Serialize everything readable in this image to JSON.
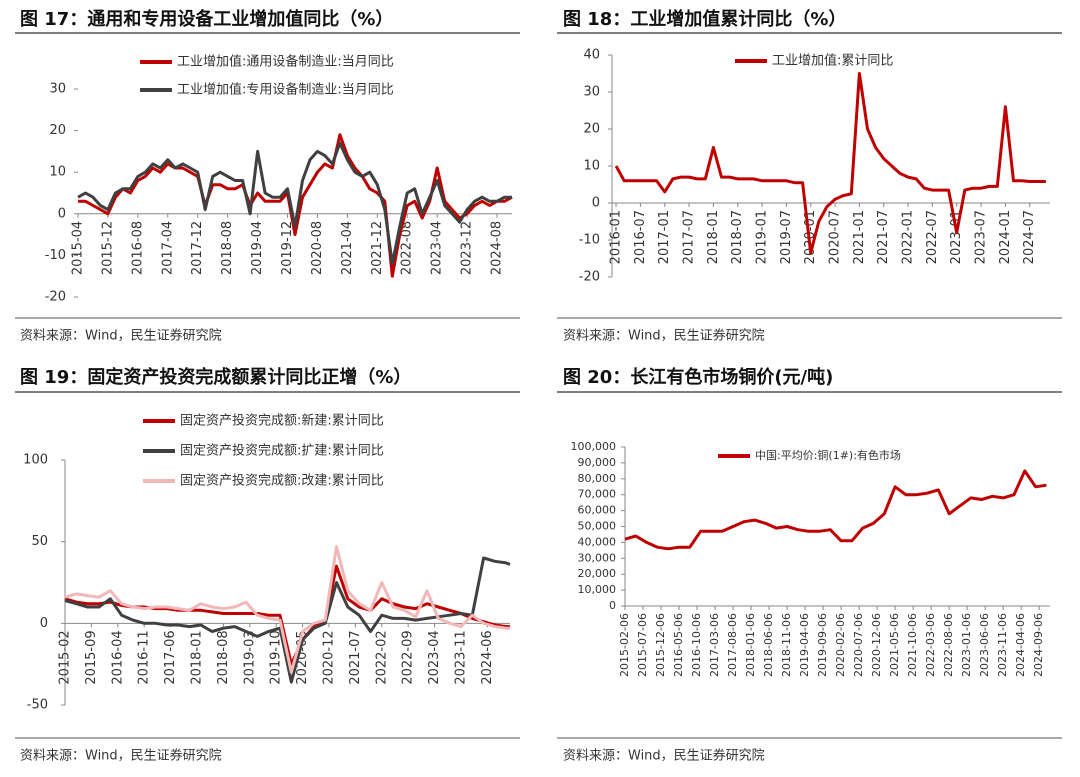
{
  "chart_data": [
    {
      "type": "line",
      "title": "图 17：通用和专用设备工业增加值同比（%）",
      "source": "资料来源：Wind，民生证券研究院",
      "x": [
        "2015-04",
        "2015-06",
        "2015-08",
        "2015-10",
        "2015-12",
        "2016-02",
        "2016-04",
        "2016-06",
        "2016-08",
        "2016-10",
        "2016-12",
        "2017-02",
        "2017-04",
        "2017-06",
        "2017-08",
        "2017-10",
        "2017-12",
        "2018-02",
        "2018-04",
        "2018-06",
        "2018-08",
        "2018-10",
        "2018-12",
        "2019-02",
        "2019-04",
        "2019-06",
        "2019-08",
        "2019-10",
        "2019-12",
        "2020-02",
        "2020-04",
        "2020-06",
        "2020-08",
        "2020-10",
        "2020-12",
        "2021-02",
        "2021-04",
        "2021-06",
        "2021-08",
        "2021-10",
        "2021-12",
        "2022-02",
        "2022-04",
        "2022-06",
        "2022-08",
        "2022-10",
        "2022-12",
        "2023-02",
        "2023-04",
        "2023-06",
        "2023-08",
        "2023-10",
        "2023-12",
        "2024-02",
        "2024-04",
        "2024-06",
        "2024-08",
        "2024-10",
        "2024-12"
      ],
      "xlim": [
        "2015-04",
        "2024-12"
      ],
      "xticks": [
        "2015-04",
        "2015-12",
        "2016-08",
        "2017-04",
        "2017-12",
        "2018-08",
        "2019-04",
        "2019-12",
        "2020-08",
        "2021-04",
        "2021-12",
        "2022-08",
        "2023-04",
        "2023-12",
        "2024-08"
      ],
      "ylim": [
        -20,
        30
      ],
      "yticks": [
        -20,
        -10,
        0,
        10,
        20,
        30
      ],
      "series": [
        {
          "name": "工业增加值:通用设备制造业:当月同比",
          "color": "#c00000",
          "values": [
            3,
            3,
            2,
            1,
            0,
            4,
            6,
            5,
            8,
            9,
            11,
            10,
            12,
            11,
            11,
            10,
            9,
            2,
            7,
            7,
            6,
            6,
            7,
            2,
            5,
            3,
            3,
            3,
            5,
            -5,
            4,
            7,
            10,
            12,
            11,
            19,
            14,
            11,
            9,
            6,
            5,
            3,
            -15,
            -5,
            2,
            3,
            -1,
            3,
            11,
            3,
            1,
            -1,
            0,
            2,
            3,
            2,
            3,
            3,
            4
          ]
        },
        {
          "name": "工业增加值:专用设备制造业:当月同比",
          "color": "#404040",
          "values": [
            4,
            5,
            4,
            2,
            1,
            5,
            6,
            6,
            9,
            10,
            12,
            11,
            13,
            11,
            12,
            11,
            10,
            1,
            9,
            10,
            9,
            8,
            8,
            0,
            15,
            5,
            4,
            4,
            6,
            -3,
            8,
            13,
            15,
            14,
            12,
            17,
            13,
            10,
            9,
            10,
            7,
            1,
            -12,
            -3,
            5,
            6,
            0,
            4,
            8,
            2,
            0,
            -2,
            1,
            3,
            4,
            3,
            3,
            4,
            4
          ]
        }
      ]
    },
    {
      "type": "line",
      "title": "图 18：工业增加值累计同比（%）",
      "source": "资料来源：Wind，民生证券研究院",
      "x": [
        "2016-01",
        "2016-03",
        "2016-05",
        "2016-07",
        "2016-09",
        "2016-11",
        "2017-01",
        "2017-03",
        "2017-05",
        "2017-07",
        "2017-09",
        "2017-11",
        "2018-01",
        "2018-03",
        "2018-05",
        "2018-07",
        "2018-09",
        "2018-11",
        "2019-01",
        "2019-03",
        "2019-05",
        "2019-07",
        "2019-09",
        "2019-11",
        "2020-01",
        "2020-03",
        "2020-05",
        "2020-07",
        "2020-09",
        "2020-11",
        "2021-01",
        "2021-03",
        "2021-05",
        "2021-07",
        "2021-09",
        "2021-11",
        "2022-01",
        "2022-03",
        "2022-05",
        "2022-07",
        "2022-09",
        "2022-11",
        "2023-01",
        "2023-03",
        "2023-05",
        "2023-07",
        "2023-09",
        "2023-11",
        "2024-01",
        "2024-03",
        "2024-05",
        "2024-07",
        "2024-09",
        "2024-11"
      ],
      "xlim": [
        "2015-12",
        "2024-12"
      ],
      "xticks": [
        "2016-01",
        "2016-07",
        "2017-01",
        "2017-07",
        "2018-01",
        "2018-07",
        "2019-01",
        "2019-07",
        "2020-01",
        "2020-07",
        "2021-01",
        "2021-07",
        "2022-01",
        "2022-07",
        "2023-01",
        "2023-07",
        "2024-01",
        "2024-07"
      ],
      "ylim": [
        -20,
        40
      ],
      "yticks": [
        -20,
        -10,
        0,
        10,
        20,
        30,
        40
      ],
      "series": [
        {
          "name": "工业增加值:累计同比",
          "color": "#c00000",
          "values": [
            10,
            6,
            6,
            6,
            6,
            6,
            3,
            6.5,
            7,
            7,
            6.5,
            6.5,
            15,
            7,
            7,
            6.5,
            6.5,
            6.5,
            6,
            6,
            6,
            6,
            5.5,
            5.5,
            -13.5,
            -5,
            -1,
            1,
            2,
            2.5,
            35,
            20,
            15,
            12,
            10,
            8,
            7,
            6.5,
            4,
            3.5,
            3.5,
            3.5,
            -8,
            3.5,
            4,
            4,
            4.5,
            4.5,
            26,
            6,
            6,
            5.8,
            5.8,
            5.8
          ]
        }
      ]
    },
    {
      "type": "line",
      "title": "图 19：固定资产投资完成额累计同比正增（%）",
      "source": "资料来源：Wind，民生证券研究院",
      "x": [
        "2015-02",
        "2015-05",
        "2015-08",
        "2015-11",
        "2016-02",
        "2016-05",
        "2016-08",
        "2016-11",
        "2017-02",
        "2017-05",
        "2017-08",
        "2017-11",
        "2018-02",
        "2018-05",
        "2018-08",
        "2018-11",
        "2019-02",
        "2019-05",
        "2019-08",
        "2019-11",
        "2020-02",
        "2020-05",
        "2020-08",
        "2020-11",
        "2021-02",
        "2021-05",
        "2021-08",
        "2021-11",
        "2022-02",
        "2022-05",
        "2022-08",
        "2022-11",
        "2023-02",
        "2023-05",
        "2023-08",
        "2023-11",
        "2024-02",
        "2024-05",
        "2024-08",
        "2024-11",
        "2024-12"
      ],
      "xlim": [
        "2015-02",
        "2024-12"
      ],
      "xticks": [
        "2015-02",
        "2015-09",
        "2016-04",
        "2016-11",
        "2017-06",
        "2018-01",
        "2018-08",
        "2019-03",
        "2019-10",
        "2020-05",
        "2020-12",
        "2021-07",
        "2022-02",
        "2022-09",
        "2023-04",
        "2023-11",
        "2024-06"
      ],
      "ylim": [
        -50,
        100
      ],
      "yticks": [
        -50,
        0,
        50,
        100
      ],
      "series": [
        {
          "name": "固定资产投资完成额:新建:累计同比",
          "color": "#c00000",
          "values": [
            15,
            13,
            12,
            12,
            13,
            11,
            10,
            10,
            9,
            9,
            8,
            8,
            8,
            7,
            6,
            6,
            6,
            6,
            5,
            5,
            -25,
            -10,
            -2,
            2,
            35,
            15,
            10,
            8,
            15,
            12,
            10,
            9,
            12,
            10,
            8,
            6,
            3,
            1,
            -1,
            -2,
            -2
          ]
        },
        {
          "name": "固定资产投资完成额:扩建:累计同比",
          "color": "#404040",
          "values": [
            14,
            12,
            10,
            10,
            15,
            5,
            2,
            0,
            0,
            -1,
            -1,
            -2,
            -1,
            -5,
            -3,
            -2,
            -5,
            -8,
            -5,
            -3,
            -36,
            -10,
            -3,
            0,
            25,
            10,
            5,
            -5,
            5,
            3,
            3,
            2,
            3,
            4,
            5,
            6,
            5,
            40,
            38,
            37,
            36
          ]
        },
        {
          "name": "固定资产投资完成额:改建:累计同比",
          "color": "#f0b8b8",
          "values": [
            16,
            18,
            17,
            16,
            20,
            12,
            10,
            9,
            10,
            10,
            9,
            8,
            12,
            10,
            9,
            10,
            13,
            5,
            3,
            2,
            -30,
            -5,
            0,
            2,
            47,
            20,
            12,
            8,
            25,
            10,
            8,
            4,
            20,
            3,
            0,
            -2,
            5,
            0,
            -2,
            -3,
            -3
          ]
        }
      ]
    },
    {
      "type": "line",
      "title": "图 20：长江有色市场铜价(元/吨)",
      "source": "资料来源：Wind，民生证券研究院",
      "x": [
        "2015-02-06",
        "2015-05-06",
        "2015-08-06",
        "2015-11-06",
        "2016-02-06",
        "2016-05-06",
        "2016-08-06",
        "2016-11-06",
        "2017-02-06",
        "2017-05-06",
        "2017-08-06",
        "2017-11-06",
        "2018-02-06",
        "2018-05-06",
        "2018-08-06",
        "2018-11-06",
        "2019-02-06",
        "2019-05-06",
        "2019-08-06",
        "2019-11-06",
        "2020-02-06",
        "2020-05-06",
        "2020-08-06",
        "2020-11-06",
        "2021-02-06",
        "2021-05-06",
        "2021-08-06",
        "2021-11-06",
        "2022-02-06",
        "2022-05-06",
        "2022-08-06",
        "2022-11-06",
        "2023-02-06",
        "2023-05-06",
        "2023-08-06",
        "2023-11-06",
        "2024-02-06",
        "2024-05-06",
        "2024-08-06",
        "2024-11-06"
      ],
      "xlim": [
        "2015-02-06",
        "2024-12-06"
      ],
      "xticks": [
        "2015-02-06",
        "2015-07-06",
        "2015-12-06",
        "2016-05-06",
        "2016-10-06",
        "2017-03-06",
        "2017-08-06",
        "2018-01-06",
        "2018-06-06",
        "2018-11-06",
        "2019-04-06",
        "2019-09-06",
        "2020-02-06",
        "2020-07-06",
        "2020-12-06",
        "2021-05-06",
        "2021-10-06",
        "2022-03-06",
        "2022-08-06",
        "2023-01-06",
        "2023-06-06",
        "2023-11-06",
        "2024-04-06",
        "2024-09-06"
      ],
      "ylim": [
        0,
        100000
      ],
      "yticks": [
        0,
        {
          "value": 10000,
          "label": "10,000"
        },
        {
          "value": 20000,
          "label": "20,000"
        },
        {
          "value": 30000,
          "label": "30,000"
        },
        {
          "value": 40000,
          "label": "40,000"
        },
        {
          "value": 50000,
          "label": "50,000"
        },
        {
          "value": 60000,
          "label": "60,000"
        },
        {
          "value": 70000,
          "label": "70,000"
        },
        {
          "value": 80000,
          "label": "80,000"
        },
        {
          "value": 90000,
          "label": "90,000"
        },
        {
          "value": 100000,
          "label": "100,000"
        }
      ],
      "series": [
        {
          "name": "中国:平均价:铜(1#):有色市场",
          "color": "#c00000",
          "values": [
            42000,
            44000,
            40000,
            37000,
            36000,
            37000,
            37000,
            47000,
            47000,
            47000,
            50000,
            53000,
            54000,
            52000,
            49000,
            50000,
            48000,
            47000,
            47000,
            48000,
            41000,
            41000,
            49000,
            52000,
            58000,
            75000,
            70000,
            70000,
            71000,
            73000,
            58000,
            63000,
            68000,
            67000,
            69000,
            68000,
            70000,
            85000,
            75000,
            76000
          ]
        }
      ]
    }
  ]
}
